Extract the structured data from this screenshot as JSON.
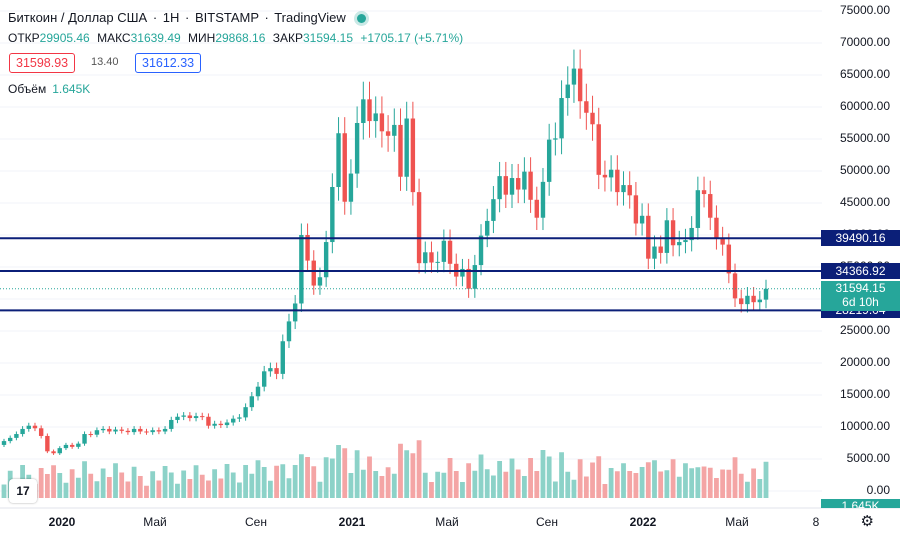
{
  "header": {
    "symbol_name": "Биткоин / Доллар США",
    "interval": "1Н",
    "exchange": "BITSTAMP",
    "platform": "TradingView"
  },
  "ohlc": {
    "open_label": "ОТКР",
    "open": "29905.46",
    "high_label": "МАКС",
    "high": "31639.49",
    "low_label": "МИН",
    "low": "29868.16",
    "close_label": "ЗАКР",
    "close": "31594.15",
    "change": "+1705.17 (+5.71%)"
  },
  "trade": {
    "bid": "31598.93",
    "spread": "13.40",
    "ask": "31612.33"
  },
  "volume_legend": {
    "label": "Объём",
    "value": "1.645K"
  },
  "price_axis": {
    "ticks": [
      "75000.00",
      "70000.00",
      "65000.00",
      "60000.00",
      "55000.00",
      "50000.00",
      "45000.00",
      "40000.00",
      "35000.00",
      "30000.00",
      "25000.00",
      "20000.00",
      "15000.00",
      "10000.00",
      "5000.00",
      "0.00"
    ],
    "tag_lines": [
      "39490.16",
      "34366.92",
      "28219.04"
    ],
    "current_price": "31594.15",
    "countdown": "6d 10h",
    "volume_tag": "1.645K"
  },
  "time_axis": [
    {
      "label": "2020",
      "bold": true
    },
    {
      "label": "Май",
      "bold": false
    },
    {
      "label": "Сен",
      "bold": false
    },
    {
      "label": "2021",
      "bold": true
    },
    {
      "label": "Май",
      "bold": false
    },
    {
      "label": "Сен",
      "bold": false
    },
    {
      "label": "2022",
      "bold": true
    },
    {
      "label": "Май",
      "bold": false
    },
    {
      "label": "8",
      "bold": false
    }
  ],
  "logo_text": "17",
  "colors": {
    "up": "#26a69a",
    "down": "#ef5350",
    "level_line": "#0b1f78",
    "grid": "#f0f3fa",
    "vol_up": "#8cd2c8",
    "vol_down": "#f4a5a5"
  },
  "chart_data": {
    "type": "candlestick",
    "title": "Биткоин / Доллар США · 1Н · BITSTAMP",
    "ylim": [
      0,
      75000
    ],
    "horizontal_levels": [
      39490.16,
      34366.92,
      28219.04
    ],
    "candles": [
      {
        "o": 7200,
        "c": 7800
      },
      {
        "o": 7800,
        "c": 8300
      },
      {
        "o": 8300,
        "c": 8900
      },
      {
        "o": 8900,
        "c": 9700
      },
      {
        "o": 9700,
        "c": 10200
      },
      {
        "o": 10200,
        "c": 9800
      },
      {
        "o": 9800,
        "c": 8600
      },
      {
        "o": 8600,
        "c": 6200
      },
      {
        "o": 6200,
        "c": 5900
      },
      {
        "o": 5900,
        "c": 6700
      },
      {
        "o": 6700,
        "c": 7200
      },
      {
        "o": 7200,
        "c": 6900
      },
      {
        "o": 6900,
        "c": 7400
      },
      {
        "o": 7400,
        "c": 8900
      },
      {
        "o": 8900,
        "c": 8800
      },
      {
        "o": 8800,
        "c": 9500
      },
      {
        "o": 9500,
        "c": 9700
      },
      {
        "o": 9700,
        "c": 9300
      },
      {
        "o": 9300,
        "c": 9600
      },
      {
        "o": 9600,
        "c": 9400
      },
      {
        "o": 9400,
        "c": 9200
      },
      {
        "o": 9200,
        "c": 9700
      },
      {
        "o": 9700,
        "c": 9300
      },
      {
        "o": 9300,
        "c": 9200
      },
      {
        "o": 9200,
        "c": 9500
      },
      {
        "o": 9500,
        "c": 9300
      },
      {
        "o": 9300,
        "c": 9700
      },
      {
        "o": 9700,
        "c": 11100
      },
      {
        "o": 11100,
        "c": 11600
      },
      {
        "o": 11600,
        "c": 11800
      },
      {
        "o": 11800,
        "c": 11400
      },
      {
        "o": 11400,
        "c": 11700
      },
      {
        "o": 11700,
        "c": 11600
      },
      {
        "o": 11600,
        "c": 10200
      },
      {
        "o": 10200,
        "c": 10500
      },
      {
        "o": 10500,
        "c": 10300
      },
      {
        "o": 10300,
        "c": 10700
      },
      {
        "o": 10700,
        "c": 11300
      },
      {
        "o": 11300,
        "c": 11500
      },
      {
        "o": 11500,
        "c": 13100
      },
      {
        "o": 13100,
        "c": 14800
      },
      {
        "o": 14800,
        "c": 16300
      },
      {
        "o": 16300,
        "c": 18700
      },
      {
        "o": 18700,
        "c": 19200
      },
      {
        "o": 19200,
        "c": 18300
      },
      {
        "o": 18300,
        "c": 23400
      },
      {
        "o": 23400,
        "c": 26500
      },
      {
        "o": 26500,
        "c": 29300
      },
      {
        "o": 29300,
        "c": 40000
      },
      {
        "o": 40000,
        "c": 36000
      },
      {
        "o": 36000,
        "c": 32100
      },
      {
        "o": 32100,
        "c": 33400
      },
      {
        "o": 33400,
        "c": 38900
      },
      {
        "o": 38900,
        "c": 47500
      },
      {
        "o": 47500,
        "c": 55900
      },
      {
        "o": 55900,
        "c": 45200
      },
      {
        "o": 45200,
        "c": 49600
      },
      {
        "o": 49600,
        "c": 57500
      },
      {
        "o": 57500,
        "c": 61200
      },
      {
        "o": 61200,
        "c": 57800
      },
      {
        "o": 57800,
        "c": 59000
      },
      {
        "o": 59000,
        "c": 56200
      },
      {
        "o": 56200,
        "c": 55500
      },
      {
        "o": 55500,
        "c": 57200
      },
      {
        "o": 57200,
        "c": 49100
      },
      {
        "o": 49100,
        "c": 58200
      },
      {
        "o": 58200,
        "c": 46700
      },
      {
        "o": 46700,
        "c": 35600
      },
      {
        "o": 35600,
        "c": 37300
      },
      {
        "o": 37300,
        "c": 35700
      },
      {
        "o": 35700,
        "c": 35800
      },
      {
        "o": 35800,
        "c": 39100
      },
      {
        "o": 39100,
        "c": 35500
      },
      {
        "o": 35500,
        "c": 33500
      },
      {
        "o": 33500,
        "c": 34700
      },
      {
        "o": 34700,
        "c": 31600
      },
      {
        "o": 31600,
        "c": 35300
      },
      {
        "o": 35300,
        "c": 39900
      },
      {
        "o": 39900,
        "c": 42200
      },
      {
        "o": 42200,
        "c": 45600
      },
      {
        "o": 45600,
        "c": 49200
      },
      {
        "o": 49200,
        "c": 46300
      },
      {
        "o": 46300,
        "c": 48900
      },
      {
        "o": 48900,
        "c": 47100
      },
      {
        "o": 47100,
        "c": 49900
      },
      {
        "o": 49900,
        "c": 45500
      },
      {
        "o": 45500,
        "c": 42700
      },
      {
        "o": 42700,
        "c": 48300
      },
      {
        "o": 48300,
        "c": 54900
      },
      {
        "o": 54900,
        "c": 55100
      },
      {
        "o": 55100,
        "c": 61400
      },
      {
        "o": 61400,
        "c": 63500
      },
      {
        "o": 63500,
        "c": 66000
      },
      {
        "o": 66000,
        "c": 60900
      },
      {
        "o": 60900,
        "c": 59100
      },
      {
        "o": 59100,
        "c": 57300
      },
      {
        "o": 57300,
        "c": 49400
      },
      {
        "o": 49400,
        "c": 49000
      },
      {
        "o": 49000,
        "c": 50200
      },
      {
        "o": 50200,
        "c": 46700
      },
      {
        "o": 46700,
        "c": 47800
      },
      {
        "o": 47800,
        "c": 46200
      },
      {
        "o": 46200,
        "c": 41800
      },
      {
        "o": 41800,
        "c": 43000
      },
      {
        "o": 43000,
        "c": 36300
      },
      {
        "o": 36300,
        "c": 38200
      },
      {
        "o": 38200,
        "c": 37200
      },
      {
        "o": 37200,
        "c": 42300
      },
      {
        "o": 42300,
        "c": 38400
      },
      {
        "o": 38400,
        "c": 38900
      },
      {
        "o": 38900,
        "c": 39200
      },
      {
        "o": 39200,
        "c": 41100
      },
      {
        "o": 41100,
        "c": 47000
      },
      {
        "o": 47000,
        "c": 46400
      },
      {
        "o": 46400,
        "c": 42700
      },
      {
        "o": 42700,
        "c": 39500
      },
      {
        "o": 39500,
        "c": 38500
      },
      {
        "o": 38500,
        "c": 34000
      },
      {
        "o": 34000,
        "c": 30100
      },
      {
        "o": 30100,
        "c": 29200
      },
      {
        "o": 29200,
        "c": 30500
      },
      {
        "o": 30500,
        "c": 29500
      },
      {
        "o": 29500,
        "c": 29900
      },
      {
        "o": 29900,
        "c": 31594
      }
    ]
  }
}
